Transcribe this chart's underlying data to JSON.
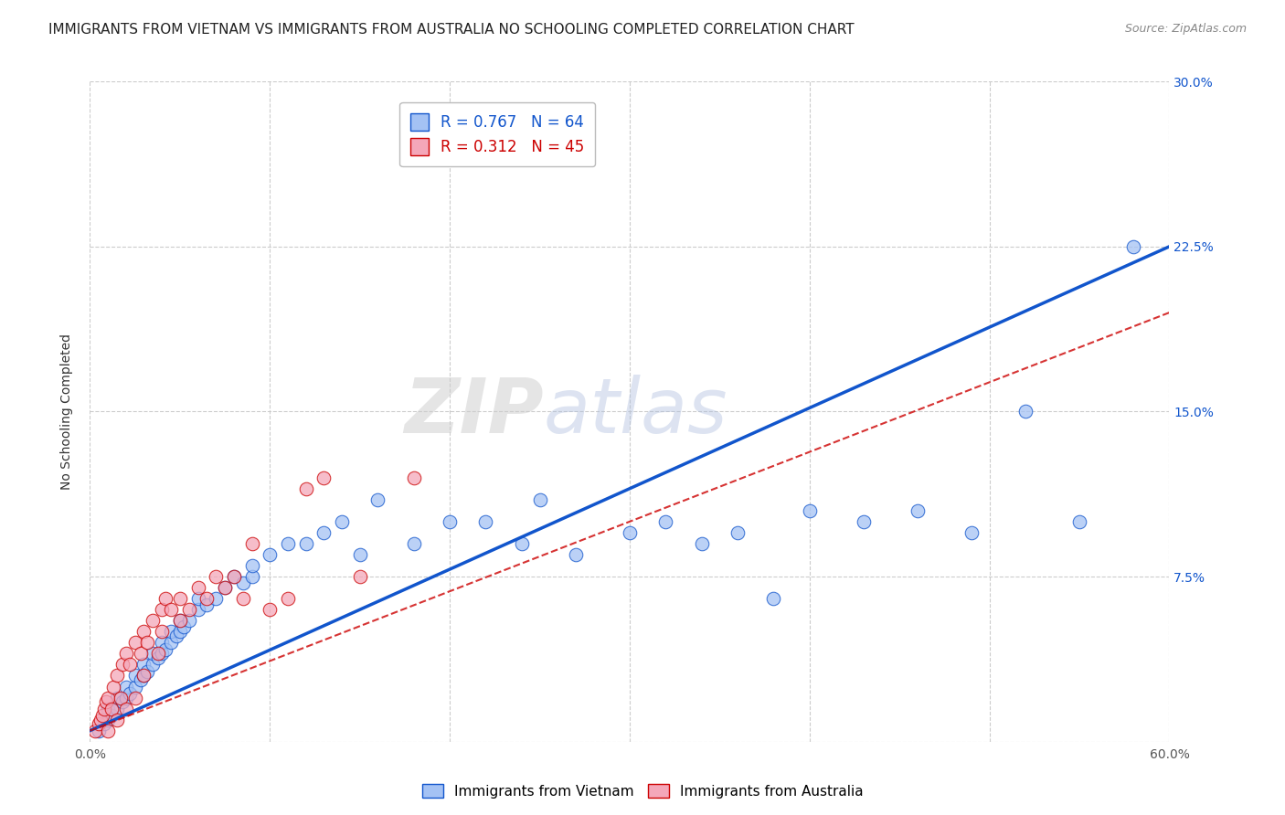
{
  "title": "IMMIGRANTS FROM VIETNAM VS IMMIGRANTS FROM AUSTRALIA NO SCHOOLING COMPLETED CORRELATION CHART",
  "source": "Source: ZipAtlas.com",
  "xlabel": "",
  "ylabel": "No Schooling Completed",
  "xlim": [
    0.0,
    0.6
  ],
  "ylim": [
    0.0,
    0.3
  ],
  "xticks": [
    0.0,
    0.1,
    0.2,
    0.3,
    0.4,
    0.5,
    0.6
  ],
  "xticklabels": [
    "0.0%",
    "",
    "",
    "",
    "",
    "",
    "60.0%"
  ],
  "ytick_positions": [
    0.0,
    0.075,
    0.15,
    0.225,
    0.3
  ],
  "ytick_labels_right": [
    "",
    "7.5%",
    "15.0%",
    "22.5%",
    "30.0%"
  ],
  "blue_color": "#a4c2f4",
  "pink_color": "#f4a7b9",
  "blue_line_color": "#1155cc",
  "pink_line_color": "#cc0000",
  "R_blue": 0.767,
  "N_blue": 64,
  "R_pink": 0.312,
  "N_pink": 45,
  "watermark": "ZIPatlas",
  "legend_label_blue": "Immigrants from Vietnam",
  "legend_label_pink": "Immigrants from Australia",
  "blue_scatter_x": [
    0.005,
    0.008,
    0.01,
    0.01,
    0.012,
    0.015,
    0.015,
    0.018,
    0.02,
    0.02,
    0.022,
    0.025,
    0.025,
    0.028,
    0.03,
    0.03,
    0.032,
    0.035,
    0.035,
    0.038,
    0.04,
    0.04,
    0.042,
    0.045,
    0.045,
    0.048,
    0.05,
    0.05,
    0.052,
    0.055,
    0.06,
    0.06,
    0.065,
    0.07,
    0.075,
    0.08,
    0.085,
    0.09,
    0.09,
    0.1,
    0.11,
    0.12,
    0.13,
    0.14,
    0.15,
    0.16,
    0.18,
    0.2,
    0.22,
    0.24,
    0.25,
    0.27,
    0.3,
    0.32,
    0.34,
    0.36,
    0.38,
    0.4,
    0.43,
    0.46,
    0.49,
    0.52,
    0.55,
    0.58
  ],
  "blue_scatter_y": [
    0.005,
    0.008,
    0.01,
    0.015,
    0.012,
    0.015,
    0.02,
    0.018,
    0.02,
    0.025,
    0.022,
    0.025,
    0.03,
    0.028,
    0.03,
    0.035,
    0.032,
    0.035,
    0.04,
    0.038,
    0.04,
    0.045,
    0.042,
    0.045,
    0.05,
    0.048,
    0.05,
    0.055,
    0.052,
    0.055,
    0.06,
    0.065,
    0.062,
    0.065,
    0.07,
    0.075,
    0.072,
    0.075,
    0.08,
    0.085,
    0.09,
    0.09,
    0.095,
    0.1,
    0.085,
    0.11,
    0.09,
    0.1,
    0.1,
    0.09,
    0.11,
    0.085,
    0.095,
    0.1,
    0.09,
    0.095,
    0.065,
    0.105,
    0.1,
    0.105,
    0.095,
    0.15,
    0.1,
    0.225
  ],
  "pink_scatter_x": [
    0.003,
    0.005,
    0.006,
    0.007,
    0.008,
    0.009,
    0.01,
    0.01,
    0.012,
    0.013,
    0.015,
    0.015,
    0.017,
    0.018,
    0.02,
    0.02,
    0.022,
    0.025,
    0.025,
    0.028,
    0.03,
    0.03,
    0.032,
    0.035,
    0.038,
    0.04,
    0.04,
    0.042,
    0.045,
    0.05,
    0.05,
    0.055,
    0.06,
    0.065,
    0.07,
    0.075,
    0.08,
    0.085,
    0.09,
    0.1,
    0.11,
    0.12,
    0.13,
    0.15,
    0.18
  ],
  "pink_scatter_y": [
    0.005,
    0.008,
    0.01,
    0.012,
    0.015,
    0.018,
    0.005,
    0.02,
    0.015,
    0.025,
    0.01,
    0.03,
    0.02,
    0.035,
    0.015,
    0.04,
    0.035,
    0.02,
    0.045,
    0.04,
    0.03,
    0.05,
    0.045,
    0.055,
    0.04,
    0.05,
    0.06,
    0.065,
    0.06,
    0.055,
    0.065,
    0.06,
    0.07,
    0.065,
    0.075,
    0.07,
    0.075,
    0.065,
    0.09,
    0.06,
    0.065,
    0.115,
    0.12,
    0.075,
    0.12
  ],
  "blue_line_x": [
    0.0,
    0.6
  ],
  "blue_line_y": [
    0.005,
    0.225
  ],
  "pink_line_x": [
    0.0,
    0.6
  ],
  "pink_line_y": [
    0.005,
    0.195
  ],
  "background_color": "#ffffff",
  "grid_color": "#cccccc",
  "title_fontsize": 11,
  "axis_label_fontsize": 10,
  "tick_fontsize": 10,
  "legend_fontsize": 12
}
